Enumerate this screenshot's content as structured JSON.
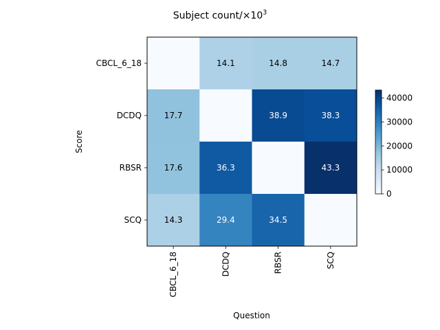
{
  "chart_data": {
    "type": "heatmap",
    "title": "Subject count/×10",
    "title_superscript": "3",
    "xlabel": "Question",
    "ylabel": "Score",
    "x_categories": [
      "CBCL_6_18",
      "DCDQ",
      "RBSR",
      "SCQ"
    ],
    "y_categories": [
      "CBCL_6_18",
      "DCDQ",
      "RBSR",
      "SCQ"
    ],
    "values": [
      [
        null,
        14.1,
        14.8,
        14.7
      ],
      [
        17.7,
        null,
        38.9,
        38.3
      ],
      [
        17.6,
        36.3,
        null,
        43.3
      ],
      [
        14.3,
        29.4,
        34.5,
        null
      ]
    ],
    "cell_labels": [
      [
        "",
        "14.1",
        "14.8",
        "14.7"
      ],
      [
        "17.7",
        "",
        "38.9",
        "38.3"
      ],
      [
        "17.6",
        "36.3",
        "",
        "43.3"
      ],
      [
        "14.3",
        "29.4",
        "34.5",
        ""
      ]
    ],
    "colormap": "Blues",
    "colorbar": {
      "min": 0,
      "max": 43300,
      "ticks": [
        0,
        10000,
        20000,
        30000,
        40000
      ],
      "tick_labels": [
        "0",
        "10000",
        "20000",
        "30000",
        "40000"
      ]
    },
    "grid": false
  }
}
